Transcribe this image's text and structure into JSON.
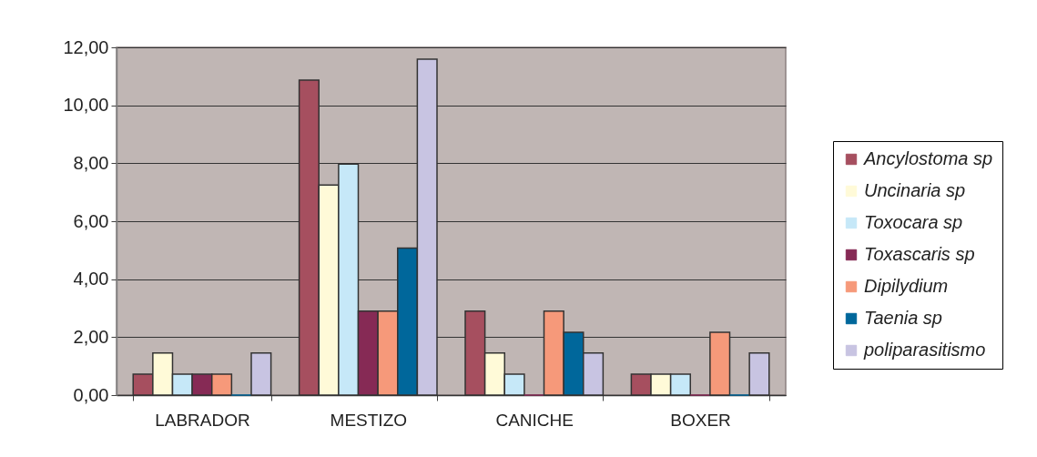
{
  "chart_data": {
    "type": "bar",
    "categories": [
      "LABRADOR",
      "MESTIZO",
      "CANICHE",
      "BOXER"
    ],
    "series": [
      {
        "name": "Ancylostoma sp",
        "color": "#a64f5f",
        "values": [
          0.72,
          10.87,
          2.9,
          0.72
        ]
      },
      {
        "name": "Uncinaria sp",
        "color": "#fffad8",
        "values": [
          1.45,
          7.25,
          1.45,
          0.72
        ]
      },
      {
        "name": "Toxocara sp",
        "color": "#c6e8f8",
        "values": [
          0.72,
          7.97,
          0.72,
          0.72
        ]
      },
      {
        "name": "Toxascaris sp",
        "color": "#862a55",
        "values": [
          0.72,
          2.9,
          0,
          0
        ]
      },
      {
        "name": "Dipilydium",
        "color": "#f6997a",
        "values": [
          0.72,
          2.9,
          2.9,
          2.17
        ]
      },
      {
        "name": "Taenia sp",
        "color": "#00679b",
        "values": [
          0,
          5.07,
          2.17,
          0
        ]
      },
      {
        "name": "poliparasitismo",
        "color": "#c8c4e2",
        "values": [
          1.45,
          11.59,
          1.45,
          1.45
        ]
      }
    ],
    "ylim": [
      0,
      12
    ],
    "yticks": [
      {
        "value": 0,
        "label": "0,00"
      },
      {
        "value": 2,
        "label": "2,00"
      },
      {
        "value": 4,
        "label": "4,00"
      },
      {
        "value": 6,
        "label": "6,00"
      },
      {
        "value": 8,
        "label": "8,00"
      },
      {
        "value": 10,
        "label": "10,00"
      },
      {
        "value": 12,
        "label": "12,00"
      }
    ],
    "grid": "y",
    "legend": "right"
  }
}
